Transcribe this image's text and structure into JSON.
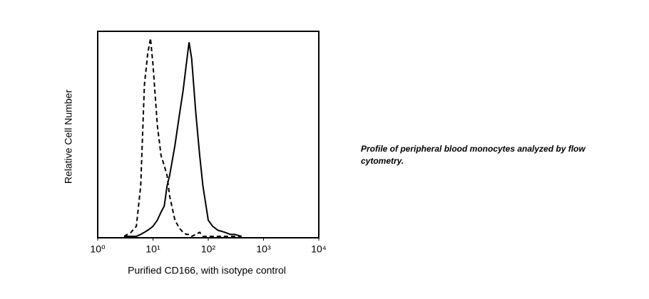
{
  "chart_data": {
    "type": "line",
    "x_label": "Purified CD166, with isotype control",
    "y_label": "Relative Cell Number",
    "log_x": true,
    "xlim": [
      1,
      10000
    ],
    "xticks": [
      {
        "value": 1,
        "label": "10⁰"
      },
      {
        "value": 10,
        "label": "10¹"
      },
      {
        "value": 100,
        "label": "10²"
      },
      {
        "value": 1000,
        "label": "10³"
      },
      {
        "value": 10000,
        "label": "10⁴"
      }
    ],
    "ylim": [
      0,
      100
    ],
    "x": [
      3,
      4,
      5,
      6,
      7,
      8,
      9,
      10,
      12,
      14,
      16,
      18,
      20,
      25,
      30,
      35,
      40,
      45,
      50,
      60,
      70,
      80,
      100,
      120,
      150,
      200,
      250,
      300,
      400
    ],
    "series": [
      {
        "color": "#000000",
        "dash": true,
        "values": [
          0,
          2,
          5,
          25,
          75,
          90,
          98,
          85,
          55,
          40,
          35,
          30,
          20,
          8,
          4,
          2,
          1,
          1,
          0,
          1,
          2,
          0,
          0,
          0,
          0,
          0,
          0,
          0,
          0
        ]
      },
      {
        "color": "#000000",
        "dash": false,
        "values": [
          0,
          0,
          0,
          1,
          2,
          3,
          4,
          5,
          8,
          12,
          15,
          25,
          30,
          45,
          60,
          72,
          85,
          96,
          88,
          60,
          40,
          25,
          8,
          5,
          3,
          2,
          1,
          1,
          0
        ]
      }
    ]
  },
  "caption": "Profile of peripheral blood monocytes analyzed by flow cytometry."
}
